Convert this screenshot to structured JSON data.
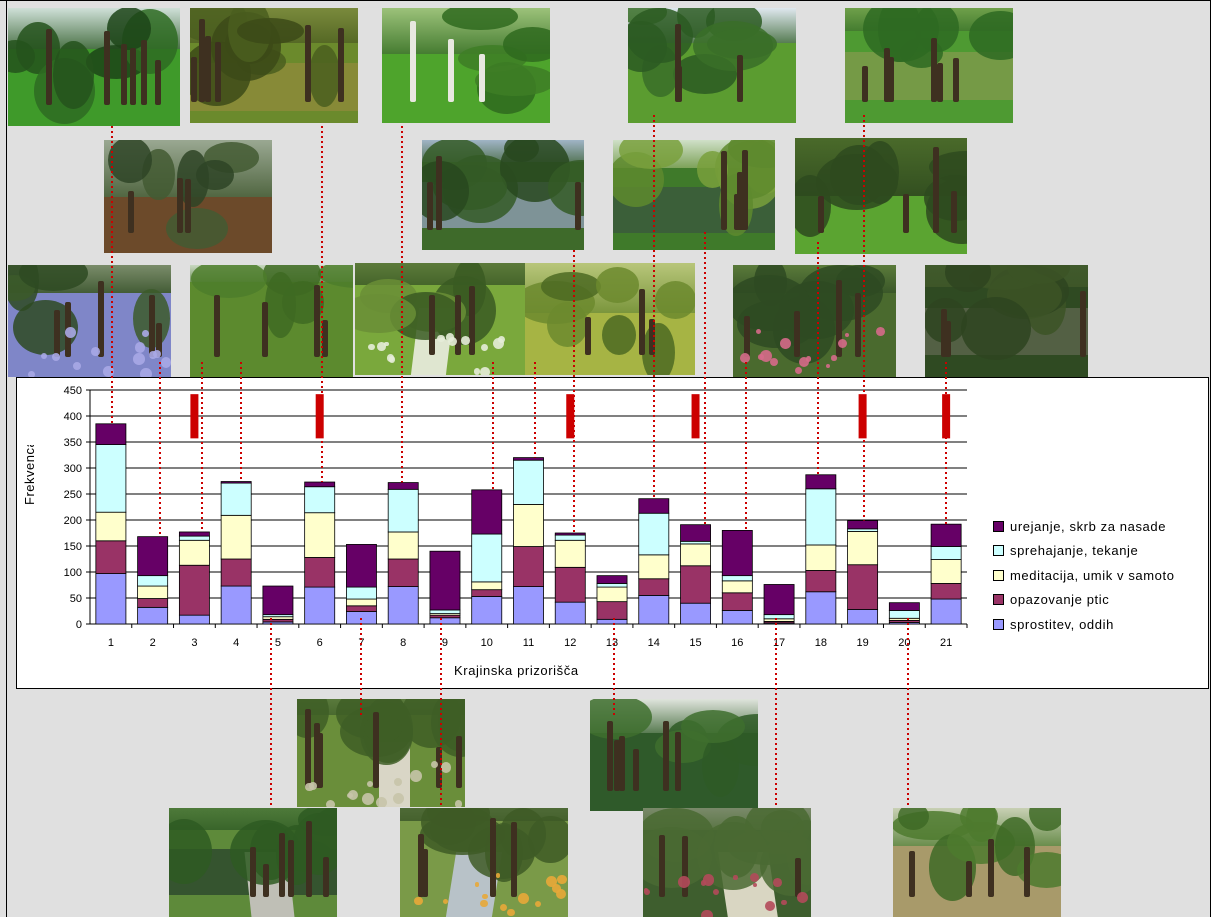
{
  "chart_data": {
    "type": "bar",
    "stacked": true,
    "xlabel": "Krajinska prizorišča",
    "ylabel": "Frekvenca",
    "ylim": [
      0,
      450
    ],
    "yticks": [
      "0",
      "50",
      "100",
      "150",
      "200",
      "250",
      "300",
      "350",
      "400",
      "450"
    ],
    "grid": true,
    "legend_position": "right",
    "categories": [
      "1",
      "2",
      "3",
      "4",
      "5",
      "6",
      "7",
      "8",
      "9",
      "10",
      "11",
      "12",
      "13",
      "14",
      "15",
      "16",
      "17",
      "18",
      "19",
      "20",
      "21"
    ],
    "series": [
      {
        "name": "sprostitev, oddih",
        "color": "#9999ff",
        "values": [
          97,
          32,
          17,
          73,
          4,
          71,
          24,
          72,
          12,
          53,
          72,
          42,
          9,
          55,
          40,
          26,
          2,
          62,
          28,
          3,
          48
        ]
      },
      {
        "name": "opazovanje ptic",
        "color": "#993366",
        "values": [
          63,
          17,
          96,
          52,
          5,
          57,
          11,
          53,
          5,
          13,
          77,
          67,
          34,
          32,
          72,
          34,
          3,
          41,
          86,
          4,
          30
        ]
      },
      {
        "name": "meditacija, umik v samoto",
        "color": "#ffffcc",
        "values": [
          55,
          24,
          48,
          84,
          5,
          86,
          13,
          52,
          3,
          15,
          81,
          52,
          28,
          46,
          42,
          23,
          5,
          49,
          64,
          4,
          46
        ]
      },
      {
        "name": "sprehajanje, tekanje",
        "color": "#ccffff",
        "values": [
          130,
          20,
          8,
          62,
          4,
          50,
          23,
          82,
          7,
          92,
          85,
          10,
          7,
          80,
          5,
          10,
          8,
          108,
          5,
          15,
          25
        ]
      },
      {
        "name": "urejanje, skrb za nasade",
        "color": "#660066",
        "values": [
          40,
          75,
          8,
          3,
          55,
          9,
          82,
          13,
          113,
          85,
          5,
          4,
          15,
          28,
          32,
          87,
          58,
          27,
          16,
          15,
          43
        ]
      }
    ],
    "markers": {
      "color": "#cc0000",
      "categories": [
        "3",
        "6",
        "12",
        "15",
        "19",
        "21"
      ]
    }
  }
}
